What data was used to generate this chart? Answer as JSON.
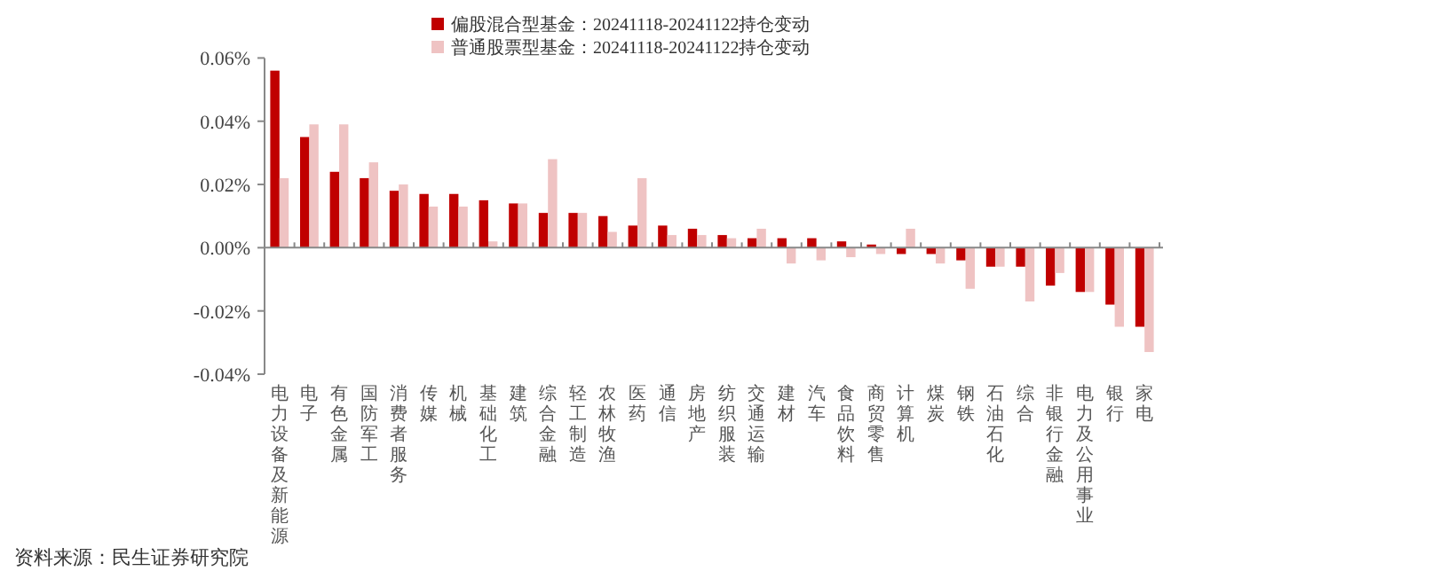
{
  "chart_data": {
    "type": "bar",
    "categories": [
      "电力设备及新能源",
      "电子",
      "有色金属",
      "国防军工",
      "消费者服务",
      "传媒",
      "机械",
      "基础化工",
      "建筑",
      "综合金融",
      "轻工制造",
      "农林牧渔",
      "医药",
      "通信",
      "房地产",
      "纺织服装",
      "交通运输",
      "建材",
      "汽车",
      "食品饮料",
      "商贸零售",
      "计算机",
      "煤炭",
      "钢铁",
      "石油石化",
      "综合",
      "非银行金融",
      "电力及公用事业",
      "银行",
      "家电"
    ],
    "series": [
      {
        "name": "偏股混合型基金：20241118-20241122持仓变动",
        "color": "#c00000",
        "values": [
          0.056,
          0.035,
          0.024,
          0.022,
          0.018,
          0.017,
          0.017,
          0.015,
          0.014,
          0.011,
          0.011,
          0.01,
          0.007,
          0.007,
          0.006,
          0.004,
          0.003,
          0.003,
          0.003,
          0.002,
          0.001,
          -0.002,
          -0.002,
          -0.004,
          -0.006,
          -0.006,
          -0.012,
          -0.014,
          -0.018,
          -0.025
        ]
      },
      {
        "name": "普通股票型基金：20241118-20241122持仓变动",
        "color": "#efc3c3",
        "values": [
          0.022,
          0.039,
          0.039,
          0.027,
          0.02,
          0.013,
          0.013,
          0.002,
          0.014,
          0.028,
          0.011,
          0.005,
          0.022,
          0.004,
          0.004,
          0.003,
          0.006,
          -0.005,
          -0.004,
          -0.003,
          -0.002,
          0.006,
          -0.005,
          -0.013,
          -0.006,
          -0.017,
          -0.008,
          -0.014,
          -0.025,
          -0.033
        ]
      }
    ],
    "ylim": [
      -0.04,
      0.06
    ],
    "yticks": [
      {
        "value": -0.04,
        "label": "-0.04%"
      },
      {
        "value": -0.02,
        "label": "-0.02%"
      },
      {
        "value": 0,
        "label": "0.00%"
      },
      {
        "value": 0.02,
        "label": "0.02%"
      },
      {
        "value": 0.04,
        "label": "0.04%"
      },
      {
        "value": 0.06,
        "label": "0.06%"
      }
    ],
    "legend": "top",
    "annotations": [
      "资料来源：民生证券研究院"
    ]
  }
}
